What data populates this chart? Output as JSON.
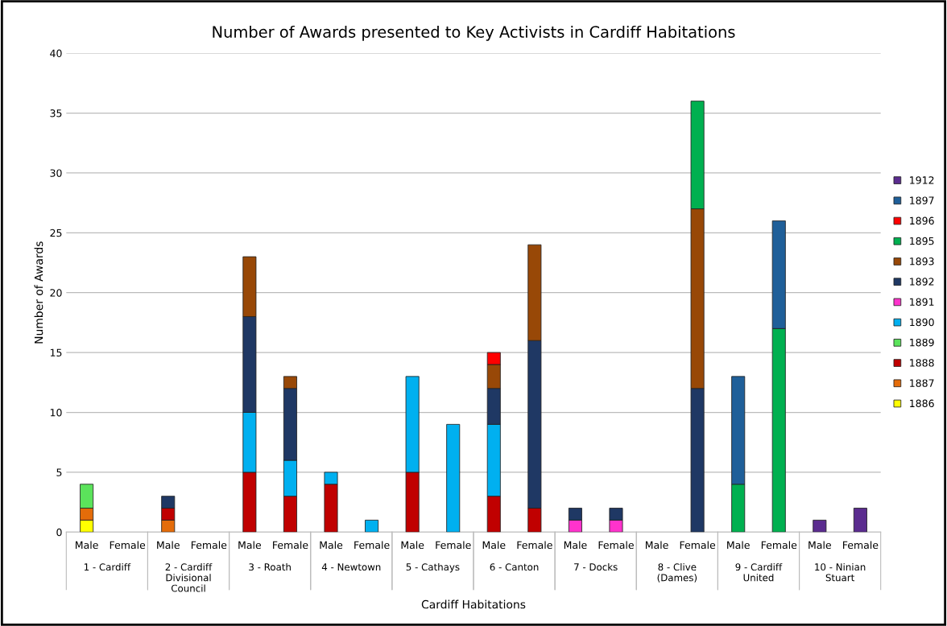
{
  "chart_data": {
    "type": "bar",
    "stacked": true,
    "title": "Number of Awards presented to Key Activists in Cardiff Habitations",
    "xlabel": "Cardiff Habitations",
    "ylabel": "Number of Awards",
    "categories": [
      "Male",
      "Female",
      "Male",
      "Female",
      "Male",
      "Female",
      "Male",
      "Female",
      "Male",
      "Female",
      "Male",
      "Female",
      "Male",
      "Female",
      "Male",
      "Female",
      "Male",
      "Female",
      "Male",
      "Female"
    ],
    "annotations": [
      "1 - Cardiff",
      "2 - Cardiff Divisional Council",
      "3 - Roath",
      "4 - Newtown",
      "5 - Cathays",
      "6 - Canton",
      "7 - Docks",
      "8 - Clive (Dames)",
      "9 - Cardiff United",
      "10 - Ninian Stuart"
    ],
    "series": [
      {
        "name": "1886",
        "color": "#ffff00",
        "values": [
          1,
          null,
          null,
          null,
          null,
          null,
          null,
          null,
          null,
          null,
          null,
          null,
          null,
          null,
          null,
          null,
          null,
          null,
          null,
          null
        ]
      },
      {
        "name": "1887",
        "color": "#e46c0a",
        "values": [
          1,
          null,
          1,
          null,
          null,
          null,
          null,
          null,
          null,
          null,
          null,
          null,
          null,
          null,
          null,
          null,
          null,
          null,
          null,
          null
        ]
      },
      {
        "name": "1888",
        "color": "#c00000",
        "values": [
          null,
          null,
          1,
          null,
          5,
          3,
          4,
          null,
          5,
          null,
          3,
          2,
          null,
          null,
          null,
          null,
          null,
          null,
          null,
          null
        ]
      },
      {
        "name": "1889",
        "color": "#5be35b",
        "values": [
          2,
          null,
          null,
          null,
          null,
          null,
          null,
          null,
          null,
          null,
          null,
          null,
          null,
          null,
          null,
          null,
          null,
          null,
          null,
          null
        ]
      },
      {
        "name": "1890",
        "color": "#00b0f0",
        "values": [
          null,
          null,
          null,
          null,
          5,
          3,
          1,
          1,
          8,
          9,
          6,
          null,
          null,
          null,
          null,
          null,
          null,
          null,
          null,
          null
        ]
      },
      {
        "name": "1891",
        "color": "#ff33cc",
        "values": [
          null,
          null,
          null,
          null,
          null,
          null,
          null,
          null,
          null,
          null,
          null,
          null,
          1,
          1,
          null,
          null,
          null,
          null,
          null,
          null
        ]
      },
      {
        "name": "1892",
        "color": "#1f3864",
        "values": [
          null,
          null,
          1,
          null,
          8,
          6,
          null,
          null,
          null,
          null,
          3,
          14,
          1,
          1,
          null,
          12,
          null,
          null,
          null,
          null
        ]
      },
      {
        "name": "1893",
        "color": "#984807",
        "values": [
          null,
          null,
          null,
          null,
          5,
          1,
          null,
          null,
          null,
          null,
          2,
          8,
          null,
          null,
          null,
          15,
          null,
          null,
          null,
          null
        ]
      },
      {
        "name": "1895",
        "color": "#00b050",
        "values": [
          null,
          null,
          null,
          null,
          null,
          null,
          null,
          null,
          null,
          null,
          null,
          null,
          null,
          null,
          null,
          9,
          4,
          17,
          null,
          null
        ]
      },
      {
        "name": "1896",
        "color": "#ff0000",
        "values": [
          null,
          null,
          null,
          null,
          null,
          null,
          null,
          null,
          null,
          null,
          1,
          null,
          null,
          null,
          null,
          null,
          null,
          null,
          null,
          null
        ]
      },
      {
        "name": "1897",
        "color": "#1f5f99",
        "values": [
          null,
          null,
          null,
          null,
          null,
          null,
          null,
          null,
          null,
          null,
          null,
          null,
          null,
          null,
          null,
          null,
          9,
          9,
          null,
          null
        ]
      },
      {
        "name": "1912",
        "color": "#5b2c8f",
        "values": [
          null,
          null,
          null,
          null,
          null,
          null,
          null,
          null,
          null,
          null,
          null,
          null,
          null,
          null,
          null,
          null,
          null,
          null,
          1,
          2
        ]
      }
    ],
    "ylim": [
      0,
      40
    ],
    "yticks": [
      0,
      5,
      10,
      15,
      20,
      25,
      30,
      35,
      40
    ],
    "grid": "y",
    "legend": "right"
  }
}
